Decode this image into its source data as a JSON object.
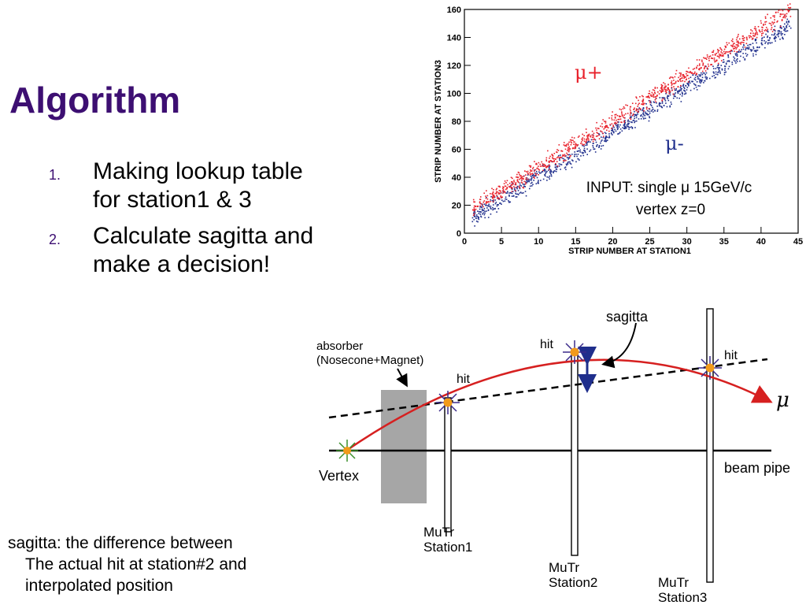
{
  "title": "Algorithm",
  "bullets": [
    {
      "num": "1.",
      "lines": [
        "Making lookup table",
        "for station1 & 3"
      ]
    },
    {
      "num": "2.",
      "lines": [
        "Calculate sagitta and",
        "make a decision!"
      ]
    }
  ],
  "note": {
    "line1": "sagitta: the difference between",
    "line2": "The actual hit at station#2 and",
    "line3": "interpolated position"
  },
  "chart": {
    "xlabel": "STRIP NUMBER AT STATION1",
    "ylabel": "STRIP NUMBER AT STATION3",
    "x_ticks": [
      0,
      5,
      10,
      15,
      20,
      25,
      30,
      35,
      40,
      45
    ],
    "y_ticks": [
      0,
      20,
      40,
      60,
      80,
      100,
      120,
      140,
      160
    ],
    "xlim": [
      0,
      45
    ],
    "ylim": [
      0,
      160
    ],
    "mu_plus_label": "μ+",
    "mu_minus_label": "μ-",
    "input_line1": "INPUT: single μ 15GeV/c",
    "input_line2": "vertex z=0",
    "colors": {
      "mu_plus": "#e8202a",
      "mu_minus": "#1f2e8c"
    }
  },
  "chart_data": {
    "type": "scatter",
    "xlabel": "STRIP NUMBER AT STATION1",
    "ylabel": "STRIP NUMBER AT STATION3",
    "xlim": [
      0,
      45
    ],
    "ylim": [
      0,
      160
    ],
    "series": [
      {
        "name": "μ+",
        "color": "#e8202a",
        "trend": {
          "x": [
            1,
            44
          ],
          "y": [
            18,
            160
          ]
        }
      },
      {
        "name": "μ-",
        "color": "#1f2e8c",
        "trend": {
          "x": [
            1,
            44
          ],
          "y": [
            12,
            150
          ]
        }
      }
    ],
    "annotations": [
      "INPUT: single μ 15GeV/c",
      "vertex z=0"
    ]
  },
  "diagram": {
    "absorber_line1": "absorber",
    "absorber_line2": "(Nosecone+Magnet)",
    "sagitta": "sagitta",
    "hit": "hit",
    "mu": "μ",
    "vertex": "Vertex",
    "beam_pipe": "beam pipe",
    "station1": [
      "MuTr",
      "Station1"
    ],
    "station2": [
      "MuTr",
      "Station2"
    ],
    "station3": [
      "MuTr",
      "Station3"
    ]
  }
}
